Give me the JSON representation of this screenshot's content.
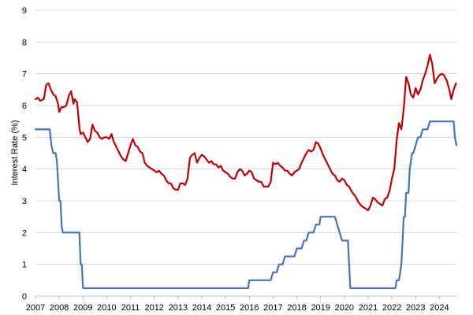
{
  "chart_data": {
    "type": "line",
    "title": "",
    "xlabel": "",
    "ylabel": "Interest Rate (%)",
    "xlim": [
      2007,
      2024.75
    ],
    "ylim": [
      0,
      9
    ],
    "yticks": [
      "0",
      "1",
      "2",
      "3",
      "4",
      "5",
      "6",
      "7",
      "8",
      "9"
    ],
    "xticks": [
      "2007",
      "2008",
      "2009",
      "2010",
      "2011",
      "2012",
      "2013",
      "2014",
      "2015",
      "2016",
      "2017",
      "2018",
      "2019",
      "2020",
      "2021",
      "2022",
      "2023",
      "2024"
    ],
    "grid": true,
    "legend": "none",
    "series": [
      {
        "color": "#c00000",
        "x": [
          2007.0,
          2007.1,
          2007.2,
          2007.35,
          2007.45,
          2007.55,
          2007.65,
          2007.75,
          2007.85,
          2007.95,
          2008.0,
          2008.1,
          2008.2,
          2008.3,
          2008.4,
          2008.5,
          2008.6,
          2008.65,
          2008.75,
          2008.85,
          2008.9,
          2009.0,
          2009.1,
          2009.2,
          2009.3,
          2009.4,
          2009.5,
          2009.6,
          2009.7,
          2009.8,
          2009.9,
          2010.0,
          2010.1,
          2010.2,
          2010.3,
          2010.4,
          2010.5,
          2010.6,
          2010.7,
          2010.8,
          2010.9,
          2011.0,
          2011.1,
          2011.2,
          2011.3,
          2011.4,
          2011.5,
          2011.6,
          2011.7,
          2011.8,
          2011.9,
          2012.0,
          2012.1,
          2012.2,
          2012.3,
          2012.4,
          2012.5,
          2012.6,
          2012.7,
          2012.8,
          2012.9,
          2013.0,
          2013.1,
          2013.2,
          2013.3,
          2013.4,
          2013.5,
          2013.6,
          2013.7,
          2013.8,
          2013.9,
          2014.0,
          2014.1,
          2014.2,
          2014.3,
          2014.4,
          2014.5,
          2014.6,
          2014.7,
          2014.8,
          2014.9,
          2015.0,
          2015.1,
          2015.2,
          2015.3,
          2015.4,
          2015.5,
          2015.6,
          2015.7,
          2015.8,
          2015.9,
          2016.0,
          2016.1,
          2016.2,
          2016.3,
          2016.4,
          2016.5,
          2016.6,
          2016.7,
          2016.8,
          2016.9,
          2017.0,
          2017.1,
          2017.2,
          2017.3,
          2017.4,
          2017.5,
          2017.6,
          2017.7,
          2017.8,
          2017.9,
          2018.0,
          2018.1,
          2018.2,
          2018.3,
          2018.4,
          2018.5,
          2018.6,
          2018.7,
          2018.8,
          2018.9,
          2019.0,
          2019.1,
          2019.2,
          2019.3,
          2019.4,
          2019.5,
          2019.6,
          2019.7,
          2019.8,
          2019.9,
          2020.0,
          2020.1,
          2020.2,
          2020.3,
          2020.4,
          2020.5,
          2020.6,
          2020.7,
          2020.8,
          2020.9,
          2021.0,
          2021.1,
          2021.2,
          2021.3,
          2021.4,
          2021.5,
          2021.6,
          2021.7,
          2021.8,
          2021.9,
          2022.0,
          2022.1,
          2022.2,
          2022.3,
          2022.4,
          2022.5,
          2022.6,
          2022.7,
          2022.8,
          2022.9,
          2023.0,
          2023.1,
          2023.2,
          2023.3,
          2023.4,
          2023.5,
          2023.6,
          2023.7,
          2023.8,
          2023.9,
          2024.0,
          2024.1,
          2024.2,
          2024.3,
          2024.4,
          2024.5,
          2024.6,
          2024.7
        ],
        "y": [
          6.2,
          6.25,
          6.15,
          6.2,
          6.65,
          6.7,
          6.5,
          6.35,
          6.3,
          6.05,
          5.8,
          5.95,
          5.95,
          6.0,
          6.3,
          6.45,
          6.05,
          6.2,
          6.1,
          5.3,
          5.1,
          5.15,
          5.0,
          4.85,
          4.95,
          5.4,
          5.2,
          5.15,
          5.0,
          4.95,
          5.0,
          5.0,
          4.95,
          5.1,
          4.85,
          4.7,
          4.55,
          4.4,
          4.3,
          4.25,
          4.5,
          4.75,
          4.95,
          4.75,
          4.7,
          4.55,
          4.5,
          4.2,
          4.1,
          4.05,
          4.0,
          3.95,
          3.9,
          3.95,
          3.85,
          3.8,
          3.65,
          3.55,
          3.55,
          3.4,
          3.35,
          3.35,
          3.55,
          3.55,
          3.5,
          3.7,
          4.35,
          4.45,
          4.5,
          4.2,
          4.35,
          4.45,
          4.4,
          4.3,
          4.2,
          4.25,
          4.15,
          4.15,
          4.05,
          4.1,
          3.95,
          3.9,
          3.85,
          3.75,
          3.7,
          3.7,
          3.9,
          4.0,
          3.95,
          3.8,
          3.85,
          3.95,
          3.9,
          3.7,
          3.65,
          3.6,
          3.6,
          3.45,
          3.45,
          3.45,
          3.6,
          4.2,
          4.15,
          4.2,
          4.1,
          4.05,
          3.95,
          3.95,
          3.85,
          3.8,
          3.9,
          3.95,
          4.0,
          4.2,
          4.35,
          4.5,
          4.6,
          4.55,
          4.6,
          4.85,
          4.8,
          4.65,
          4.45,
          4.3,
          4.15,
          4.0,
          3.85,
          3.8,
          3.65,
          3.6,
          3.7,
          3.65,
          3.5,
          3.45,
          3.3,
          3.2,
          3.1,
          2.95,
          2.85,
          2.8,
          2.75,
          2.7,
          2.85,
          3.1,
          3.05,
          2.95,
          2.9,
          2.85,
          3.05,
          3.1,
          3.3,
          3.7,
          4.0,
          4.9,
          5.45,
          5.25,
          5.9,
          6.9,
          6.7,
          6.35,
          6.25,
          6.55,
          6.35,
          6.5,
          6.8,
          7.0,
          7.25,
          7.6,
          7.3,
          6.7,
          6.85,
          6.95,
          7.0,
          6.95,
          6.8,
          6.55,
          6.2,
          6.5,
          6.7
        ]
      },
      {
        "color": "#4472c4",
        "x": [
          2007.0,
          2007.6,
          2007.67,
          2007.75,
          2007.85,
          2007.9,
          2008.0,
          2008.05,
          2008.1,
          2008.15,
          2008.2,
          2008.25,
          2008.3,
          2008.85,
          2008.9,
          2008.95,
          2009.0,
          2015.95,
          2016.0,
          2016.9,
          2017.0,
          2017.15,
          2017.25,
          2017.4,
          2017.5,
          2017.9,
          2018.0,
          2018.2,
          2018.3,
          2018.4,
          2018.5,
          2018.7,
          2018.8,
          2018.95,
          2019.0,
          2019.6,
          2019.7,
          2019.8,
          2019.9,
          2020.15,
          2020.2,
          2020.25,
          2020.3,
          2022.15,
          2022.2,
          2022.3,
          2022.4,
          2022.45,
          2022.5,
          2022.55,
          2022.6,
          2022.7,
          2022.75,
          2022.85,
          2022.9,
          2023.0,
          2023.1,
          2023.2,
          2023.3,
          2023.5,
          2023.6,
          2024.6,
          2024.65,
          2024.72
        ],
        "y": [
          5.25,
          5.25,
          4.75,
          4.5,
          4.5,
          4.25,
          3.0,
          3.0,
          2.25,
          2.0,
          2.0,
          2.0,
          2.0,
          2.0,
          1.0,
          1.0,
          0.25,
          0.25,
          0.5,
          0.5,
          0.75,
          0.75,
          1.0,
          1.0,
          1.25,
          1.25,
          1.5,
          1.5,
          1.75,
          1.75,
          2.0,
          2.0,
          2.25,
          2.25,
          2.5,
          2.5,
          2.25,
          2.0,
          1.75,
          1.75,
          1.0,
          0.25,
          0.25,
          0.25,
          0.5,
          0.5,
          1.0,
          1.75,
          2.5,
          2.5,
          3.25,
          3.25,
          4.0,
          4.5,
          4.5,
          4.75,
          5.0,
          5.0,
          5.25,
          5.25,
          5.5,
          5.5,
          5.0,
          4.75
        ]
      }
    ]
  }
}
